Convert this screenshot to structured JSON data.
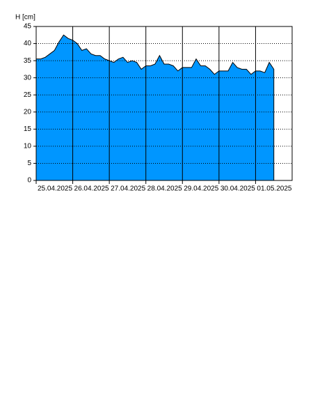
{
  "chart_data": {
    "type": "area",
    "y_label": "H [cm]",
    "x": [
      "25.04.2025",
      null,
      null,
      null,
      null,
      null,
      null,
      null,
      "26.04.2025",
      null,
      null,
      null,
      null,
      null,
      null,
      null,
      "27.04.2025",
      null,
      null,
      null,
      null,
      null,
      null,
      null,
      "28.04.2025",
      null,
      null,
      null,
      null,
      null,
      null,
      null,
      "29.04.2025",
      null,
      null,
      null,
      null,
      null,
      null,
      null,
      "30.04.2025",
      null,
      null,
      null,
      null,
      null,
      null,
      null,
      "01.05.2025",
      null,
      null,
      null,
      null,
      null,
      null,
      null,
      null
    ],
    "values": [
      35.5,
      35.5,
      36,
      37,
      38,
      40.5,
      42.5,
      41.5,
      41,
      40,
      38,
      38.5,
      37,
      36.5,
      36.5,
      35.5,
      35,
      34.5,
      35.5,
      36,
      34.5,
      35,
      34.5,
      32.5,
      33.5,
      33.5,
      34,
      36.5,
      34,
      34,
      33.5,
      32,
      33,
      33,
      33,
      35.5,
      33.5,
      33.5,
      32.5,
      31,
      32,
      32,
      32,
      34.5,
      33,
      32.5,
      32.5,
      31,
      32,
      32,
      31.5,
      34.5,
      32.5,
      null,
      null,
      null,
      null
    ],
    "color": "#0096ff",
    "ylim": [
      0,
      45
    ],
    "yticks": [
      0,
      5,
      10,
      15,
      20,
      25,
      30,
      35,
      40,
      45
    ],
    "grid": true
  }
}
